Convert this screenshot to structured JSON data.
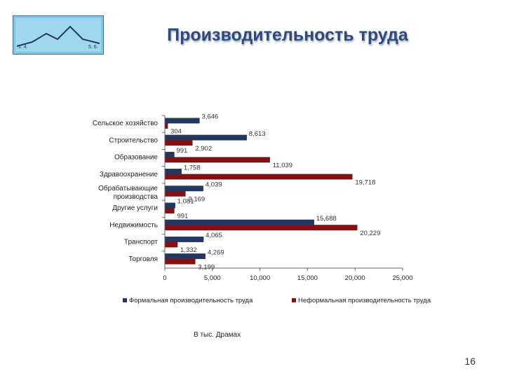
{
  "slide": {
    "title": "Производительность труда",
    "units_note": "В тыс. Драмах",
    "page_number": "16"
  },
  "logo": {
    "left_text": "1. 4.",
    "right_text": "5. 6."
  },
  "colors": {
    "formal": "#1f3864",
    "informal": "#8b0d0d",
    "title": "#2f4b7c"
  },
  "chart_data": {
    "type": "bar",
    "orientation": "horizontal",
    "categories": [
      "Сельское хозяйство",
      "Строительство",
      "Образование",
      "Здравоохранение",
      "Обрабатывающие производства",
      "Другие услуги",
      "Недвижимость",
      "Транспорт",
      "Торговля"
    ],
    "series": [
      {
        "name": "Формальная производительность труда",
        "values": [
          3646,
          8613,
          991,
          1758,
          4039,
          1081,
          15688,
          4065,
          4269
        ],
        "labels": [
          "3,646",
          "8,613",
          "991",
          "1,758",
          "4,039",
          "1,081",
          "15,688",
          "4,065",
          "4,269"
        ]
      },
      {
        "name": "Неформальная производительность труда",
        "values": [
          304,
          2902,
          11039,
          19718,
          2169,
          991,
          20229,
          1332,
          3199
        ],
        "labels": [
          "304",
          "2,902",
          "11,039",
          "19,718",
          "2,169",
          "991",
          "20,229",
          "1,332",
          "3,199"
        ]
      }
    ],
    "xlim": [
      0,
      25000
    ],
    "xticks": [
      0,
      5000,
      10000,
      15000,
      20000,
      25000
    ],
    "xtick_labels": [
      "0",
      "5,000",
      "10,000",
      "15,000",
      "20,000",
      "25,000"
    ],
    "legend_position": "bottom",
    "grid": false
  }
}
